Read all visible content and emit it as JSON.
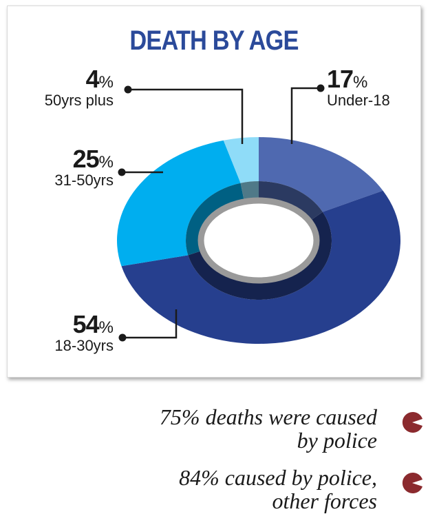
{
  "chart_data": {
    "type": "pie",
    "title": "DEATH BY AGE",
    "slices": [
      {
        "label": "Under-18",
        "value": 17,
        "value_text": "17",
        "unit": "%",
        "color": "#4f69b0"
      },
      {
        "label": "18-30yrs",
        "value": 54,
        "value_text": "54",
        "unit": "%",
        "color": "#263f8e"
      },
      {
        "label": "31-50yrs",
        "value": 25,
        "value_text": "25",
        "unit": "%",
        "color": "#00aeef"
      },
      {
        "label": "50yrs plus",
        "value": 4,
        "value_text": "4",
        "unit": "%",
        "color": "#8fdcf8"
      }
    ]
  },
  "notes": [
    {
      "line1": "75% deaths were caused",
      "line2": "by police",
      "icon": "pacman-icon",
      "color": "#8b2a2e"
    },
    {
      "line1": "84% caused by police,",
      "line2": "other forces",
      "icon": "pacman-icon",
      "color": "#8b2a2e"
    }
  ]
}
